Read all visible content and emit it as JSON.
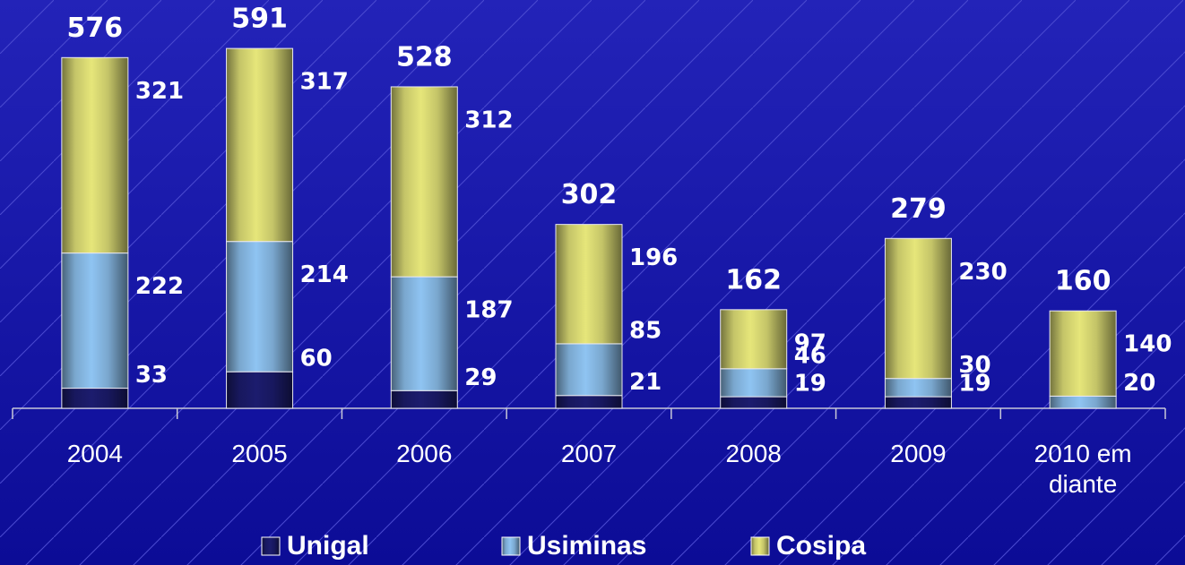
{
  "chart_data": {
    "type": "stacked_bar",
    "categories": [
      "2004",
      "2005",
      "2006",
      "2007",
      "2008",
      "2009",
      "2010 em diante"
    ],
    "series": [
      {
        "name": "Unigal",
        "color": "#1c1c6e",
        "values": [
          33,
          60,
          29,
          21,
          19,
          19,
          null
        ]
      },
      {
        "name": "Usiminas",
        "color": "#8fc4f2",
        "values": [
          222,
          214,
          187,
          85,
          46,
          30,
          20
        ]
      },
      {
        "name": "Cosipa",
        "color": "#e6e67a",
        "values": [
          321,
          317,
          312,
          196,
          97,
          230,
          140
        ]
      }
    ],
    "totals": [
      576,
      591,
      528,
      302,
      162,
      279,
      160
    ],
    "ylim": [
      0,
      600
    ]
  }
}
